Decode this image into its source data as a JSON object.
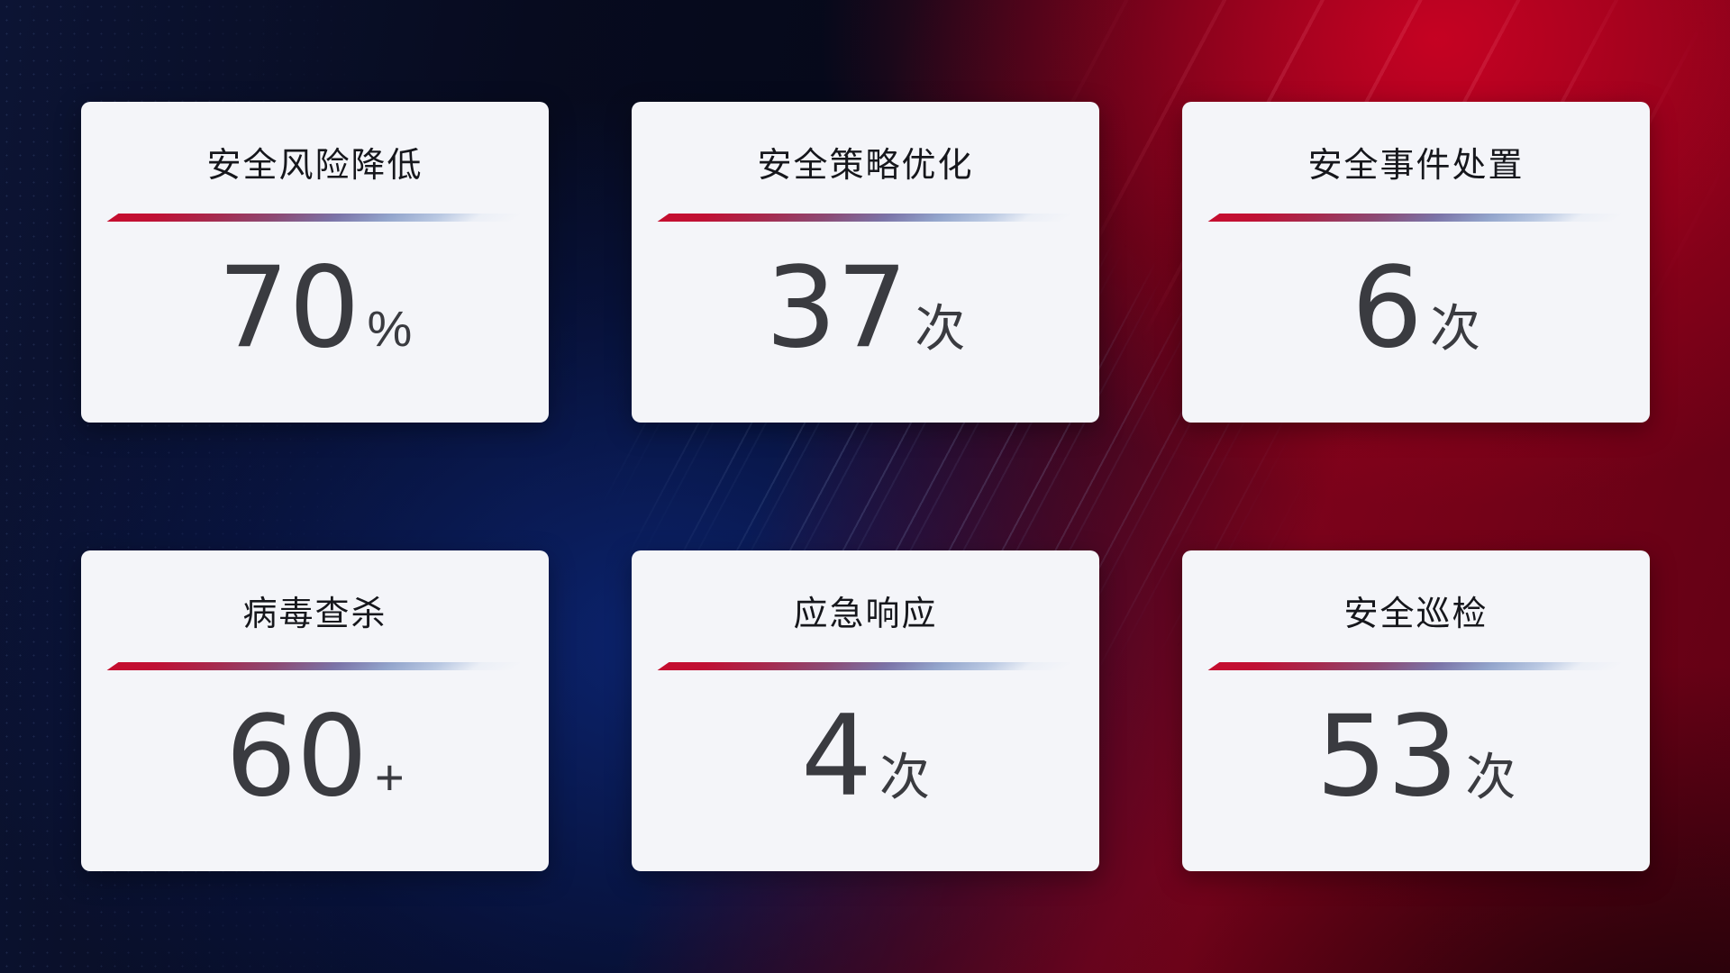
{
  "cards": [
    {
      "title": "安全风险降低",
      "value": "70",
      "unit": "%"
    },
    {
      "title": "安全策略优化",
      "value": "37",
      "unit": "次"
    },
    {
      "title": "安全事件处置",
      "value": "6",
      "unit": "次"
    },
    {
      "title": "病毒查杀",
      "value": "60",
      "unit": "+"
    },
    {
      "title": "应急响应",
      "value": "4",
      "unit": "次"
    },
    {
      "title": "安全巡检",
      "value": "53",
      "unit": "次"
    }
  ],
  "theme": {
    "accent_red": "#c50e2f",
    "accent_slate_blue": "#93a5cc",
    "card_background": "#f4f5f9",
    "value_color": "#3a3b40",
    "background_navy": "#0c1434",
    "background_crimson": "#a2001c"
  }
}
